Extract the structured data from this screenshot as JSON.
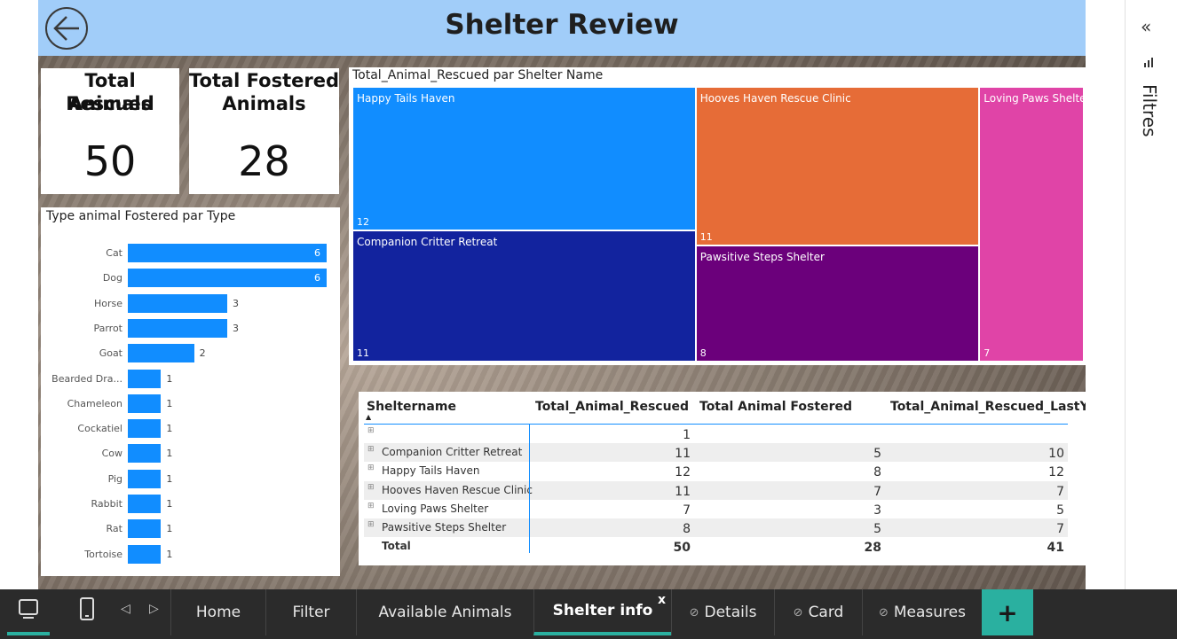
{
  "header": {
    "title": "Shelter Review"
  },
  "cards": [
    {
      "title_line1": "Total Rescued",
      "title_line2": "Animals",
      "value": "50"
    },
    {
      "title_line1": "Total Fostered",
      "title_line2": "Animals",
      "value": "28"
    }
  ],
  "bar_chart": {
    "title": "Type animal Fostered par Type"
  },
  "treemap": {
    "title": "Total_Animal_Rescued par Shelter Name"
  },
  "chart_data": [
    {
      "type": "bar",
      "title": "Type animal Fostered par Type",
      "orientation": "horizontal",
      "categories": [
        "Cat",
        "Dog",
        "Horse",
        "Parrot",
        "Goat",
        "Bearded Dra...",
        "Chameleon",
        "Cockatiel",
        "Cow",
        "Pig",
        "Rabbit",
        "Rat",
        "Tortoise"
      ],
      "values": [
        6,
        6,
        3,
        3,
        2,
        1,
        1,
        1,
        1,
        1,
        1,
        1,
        1
      ],
      "color": "#118dff",
      "xlim": [
        0,
        6
      ]
    },
    {
      "type": "treemap",
      "title": "Total_Animal_Rescued par Shelter Name",
      "categories": [
        "Happy Tails Haven",
        "Companion Critter Retreat",
        "Hooves Haven Rescue Clinic",
        "Pawsitive Steps Shelter",
        "Loving Paws Shelter"
      ],
      "values": [
        12,
        11,
        11,
        8,
        7
      ],
      "colors": [
        "#118dff",
        "#12239e",
        "#e66c37",
        "#6b007b",
        "#e044a7"
      ]
    }
  ],
  "table": {
    "columns": [
      "Sheltername",
      "Total_Animal_Rescued",
      "Total Animal Fostered",
      "Total_Animal_Rescued_LastY"
    ],
    "rows": [
      {
        "name": "",
        "rescued": "1",
        "fostered": "",
        "lasty": ""
      },
      {
        "name": "Companion Critter Retreat",
        "rescued": "11",
        "fostered": "5",
        "lasty": "10"
      },
      {
        "name": "Happy Tails Haven",
        "rescued": "12",
        "fostered": "8",
        "lasty": "12"
      },
      {
        "name": "Hooves Haven Rescue Clinic",
        "rescued": "11",
        "fostered": "7",
        "lasty": "7"
      },
      {
        "name": "Loving Paws Shelter",
        "rescued": "7",
        "fostered": "3",
        "lasty": "5"
      },
      {
        "name": "Pawsitive Steps Shelter",
        "rescued": "8",
        "fostered": "5",
        "lasty": "7"
      }
    ],
    "total": {
      "label": "Total",
      "rescued": "50",
      "fostered": "28",
      "lasty": "41"
    }
  },
  "filter_pane": {
    "label": "Filtres"
  },
  "tabs": [
    {
      "label": "Home",
      "hidden": false,
      "active": false
    },
    {
      "label": "Filter",
      "hidden": false,
      "active": false
    },
    {
      "label": "Available Animals",
      "hidden": false,
      "active": false
    },
    {
      "label": "Shelter info",
      "hidden": false,
      "active": true
    },
    {
      "label": "Details",
      "hidden": true,
      "active": false
    },
    {
      "label": "Card",
      "hidden": true,
      "active": false
    },
    {
      "label": "Measures",
      "hidden": true,
      "active": false
    }
  ],
  "add_tab": "+",
  "close_tab": "x",
  "icons": [
    "back-arrow-icon",
    "collapse-icon",
    "filter-icon",
    "desktop-view-icon",
    "mobile-view-icon",
    "prev-page-icon",
    "next-page-icon",
    "hidden-eye-icon",
    "plus-icon"
  ]
}
